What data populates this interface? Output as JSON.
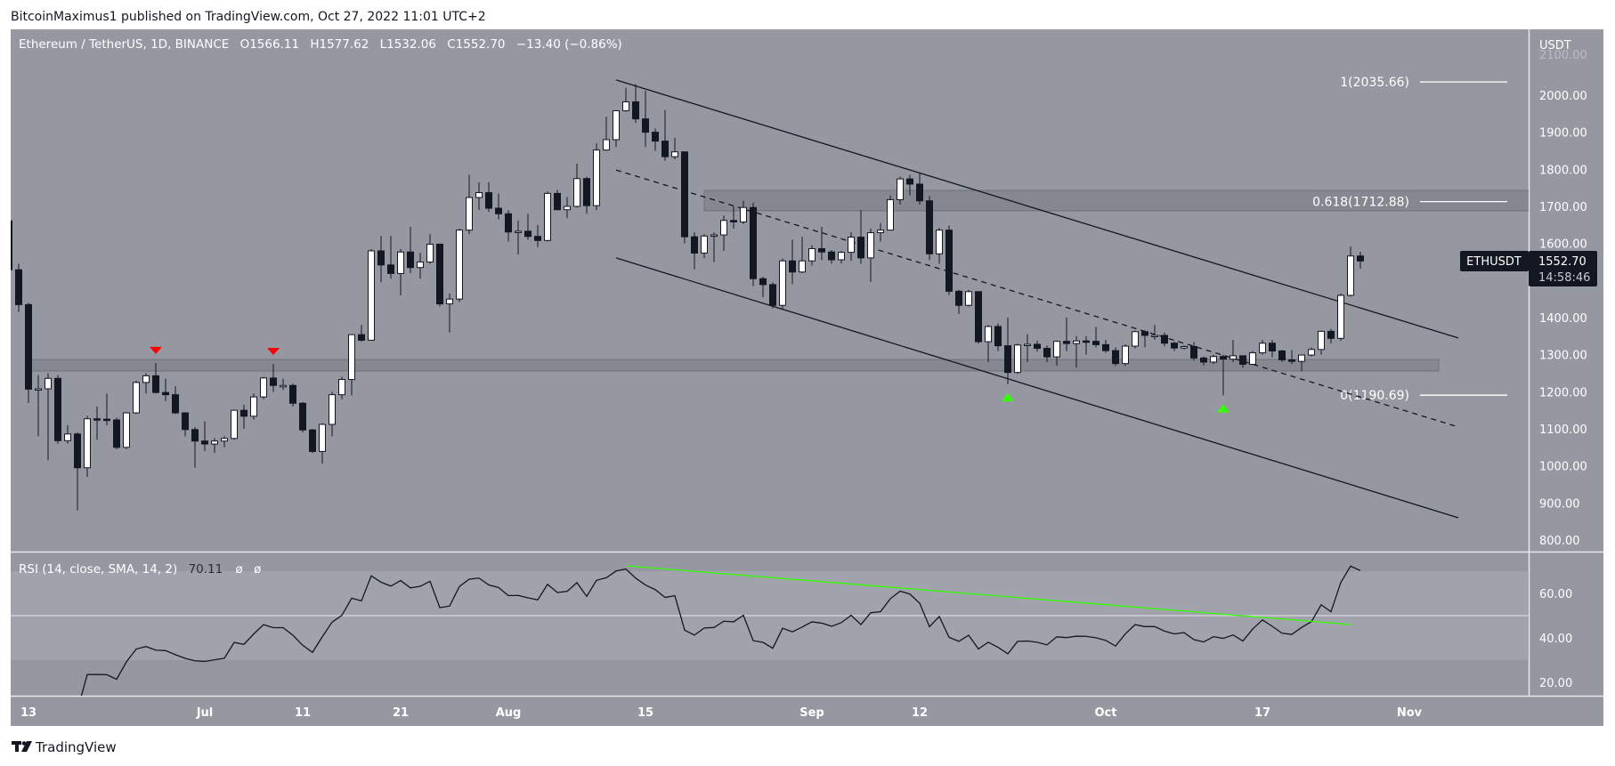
{
  "header": {
    "published": "BitcoinMaximus1 published on TradingView.com, Oct 27, 2022 11:01 UTC+2"
  },
  "legend": {
    "symbol": "Ethereum / TetherUS, 1D, BINANCE",
    "open": "O1566.11",
    "high": "H1577.62",
    "low": "L1532.06",
    "close": "C1552.70",
    "change": "−13.40 (−0.86%)"
  },
  "rsi_legend": {
    "label": "RSI (14, close, SMA, 14, 2)",
    "value": "70.11",
    "extra1": "ø",
    "extra2": "ø"
  },
  "price_axis": {
    "currency": "USDT",
    "ticks": [
      "2100.00",
      "2000.00",
      "1900.00",
      "1800.00",
      "1700.00",
      "1600.00",
      "1500.00",
      "1400.00",
      "1300.00",
      "1200.00",
      "1100.00",
      "1000.00",
      "900.00",
      "800.00"
    ],
    "last_price_symbol": "ETHUSDT",
    "last_price": "1552.70",
    "countdown": "14:58:46"
  },
  "rsi_axis": {
    "ticks": [
      "60.00",
      "40.00",
      "20.00"
    ]
  },
  "time_axis": {
    "ticks": [
      "13",
      "Jul",
      "11",
      "21",
      "Aug",
      "15",
      "Sep",
      "12",
      "Oct",
      "17",
      "Nov"
    ]
  },
  "footer": {
    "brand": "TradingView"
  },
  "colors": {
    "background": "#9598a1",
    "rsi_band": "#a0a3ab",
    "zone": "#80838b",
    "up_candle": "#ffffff",
    "down_candle": "#131722",
    "rsi_trendline": "#33ff00",
    "bear_marker": "#ff0000",
    "bull_marker": "#33ff00"
  },
  "chart_data": {
    "type": "candlestick",
    "symbol": "ETHUSDT",
    "interval": "1D",
    "ylim": [
      780,
      2120
    ],
    "xlim": [
      "2022-06-11",
      "2022-11-08"
    ],
    "candles": [
      [
        "2022-06-11",
        1661,
        1680,
        1510,
        1529
      ],
      [
        "2022-06-12",
        1529,
        1545,
        1415,
        1435
      ],
      [
        "2022-06-13",
        1435,
        1440,
        1170,
        1207
      ],
      [
        "2022-06-14",
        1207,
        1245,
        1080,
        1208
      ],
      [
        "2022-06-15",
        1208,
        1250,
        1015,
        1236
      ],
      [
        "2022-06-16",
        1236,
        1245,
        1060,
        1068
      ],
      [
        "2022-06-17",
        1068,
        1110,
        1060,
        1086
      ],
      [
        "2022-06-18",
        1086,
        1090,
        880,
        995
      ],
      [
        "2022-06-19",
        995,
        1135,
        970,
        1127
      ],
      [
        "2022-06-20",
        1127,
        1160,
        1070,
        1126
      ],
      [
        "2022-06-21",
        1126,
        1195,
        1110,
        1124
      ],
      [
        "2022-06-22",
        1124,
        1130,
        1045,
        1050
      ],
      [
        "2022-06-23",
        1050,
        1145,
        1045,
        1143
      ],
      [
        "2022-06-24",
        1143,
        1230,
        1140,
        1225
      ],
      [
        "2022-06-25",
        1225,
        1250,
        1195,
        1243
      ],
      [
        "2022-06-26",
        1243,
        1278,
        1195,
        1198
      ],
      [
        "2022-06-27",
        1198,
        1235,
        1175,
        1192
      ],
      [
        "2022-06-28",
        1192,
        1215,
        1140,
        1143
      ],
      [
        "2022-06-29",
        1143,
        1145,
        1080,
        1098
      ],
      [
        "2022-06-30",
        1098,
        1105,
        995,
        1067
      ],
      [
        "2022-07-01",
        1067,
        1120,
        1040,
        1059
      ],
      [
        "2022-07-02",
        1059,
        1075,
        1035,
        1067
      ],
      [
        "2022-07-03",
        1067,
        1080,
        1050,
        1074
      ],
      [
        "2022-07-04",
        1074,
        1152,
        1070,
        1150
      ],
      [
        "2022-07-05",
        1150,
        1165,
        1100,
        1134
      ],
      [
        "2022-07-06",
        1134,
        1195,
        1125,
        1186
      ],
      [
        "2022-07-07",
        1186,
        1240,
        1180,
        1237
      ],
      [
        "2022-07-08",
        1237,
        1275,
        1200,
        1217
      ],
      [
        "2022-07-09",
        1217,
        1235,
        1205,
        1217
      ],
      [
        "2022-07-10",
        1217,
        1222,
        1160,
        1169
      ],
      [
        "2022-07-11",
        1169,
        1172,
        1090,
        1097
      ],
      [
        "2022-07-12",
        1097,
        1100,
        1035,
        1039
      ],
      [
        "2022-07-13",
        1039,
        1115,
        1006,
        1112
      ],
      [
        "2022-07-14",
        1112,
        1200,
        1080,
        1192
      ],
      [
        "2022-07-15",
        1192,
        1240,
        1180,
        1233
      ],
      [
        "2022-07-16",
        1233,
        1355,
        1190,
        1354
      ],
      [
        "2022-07-17",
        1354,
        1380,
        1335,
        1339
      ],
      [
        "2022-07-18",
        1339,
        1585,
        1340,
        1580
      ],
      [
        "2022-07-19",
        1580,
        1620,
        1495,
        1542
      ],
      [
        "2022-07-20",
        1542,
        1620,
        1505,
        1519
      ],
      [
        "2022-07-21",
        1519,
        1585,
        1460,
        1577
      ],
      [
        "2022-07-22",
        1577,
        1645,
        1520,
        1535
      ],
      [
        "2022-07-23",
        1535,
        1575,
        1505,
        1550
      ],
      [
        "2022-07-24",
        1550,
        1625,
        1545,
        1598
      ],
      [
        "2022-07-25",
        1598,
        1600,
        1430,
        1437
      ],
      [
        "2022-07-26",
        1437,
        1465,
        1360,
        1450
      ],
      [
        "2022-07-27",
        1450,
        1640,
        1442,
        1636
      ],
      [
        "2022-07-28",
        1636,
        1785,
        1625,
        1724
      ],
      [
        "2022-07-29",
        1724,
        1765,
        1690,
        1737
      ],
      [
        "2022-07-30",
        1737,
        1765,
        1685,
        1695
      ],
      [
        "2022-07-31",
        1695,
        1735,
        1665,
        1680
      ],
      [
        "2022-08-01",
        1680,
        1690,
        1605,
        1631
      ],
      [
        "2022-08-02",
        1631,
        1662,
        1570,
        1633
      ],
      [
        "2022-08-03",
        1633,
        1680,
        1610,
        1619
      ],
      [
        "2022-08-04",
        1619,
        1650,
        1590,
        1608
      ],
      [
        "2022-08-05",
        1608,
        1740,
        1605,
        1735
      ],
      [
        "2022-08-06",
        1735,
        1745,
        1690,
        1691
      ],
      [
        "2022-08-07",
        1691,
        1725,
        1668,
        1700
      ],
      [
        "2022-08-08",
        1700,
        1815,
        1697,
        1775
      ],
      [
        "2022-08-09",
        1775,
        1780,
        1680,
        1702
      ],
      [
        "2022-08-10",
        1702,
        1870,
        1690,
        1852
      ],
      [
        "2022-08-11",
        1852,
        1942,
        1850,
        1880
      ],
      [
        "2022-08-12",
        1880,
        1960,
        1860,
        1958
      ],
      [
        "2022-08-13",
        1958,
        2020,
        1955,
        1982
      ],
      [
        "2022-08-14",
        1982,
        2030,
        1925,
        1936
      ],
      [
        "2022-08-15",
        1936,
        2012,
        1860,
        1900
      ],
      [
        "2022-08-16",
        1900,
        1910,
        1850,
        1876
      ],
      [
        "2022-08-17",
        1876,
        1960,
        1823,
        1834
      ],
      [
        "2022-08-18",
        1834,
        1885,
        1827,
        1847
      ],
      [
        "2022-08-19",
        1847,
        1848,
        1600,
        1618
      ],
      [
        "2022-08-20",
        1618,
        1630,
        1530,
        1574
      ],
      [
        "2022-08-21",
        1574,
        1625,
        1560,
        1620
      ],
      [
        "2022-08-22",
        1620,
        1630,
        1550,
        1623
      ],
      [
        "2022-08-23",
        1623,
        1675,
        1580,
        1662
      ],
      [
        "2022-08-24",
        1662,
        1700,
        1640,
        1658
      ],
      [
        "2022-08-25",
        1658,
        1715,
        1652,
        1697
      ],
      [
        "2022-08-26",
        1697,
        1710,
        1485,
        1505
      ],
      [
        "2022-08-27",
        1505,
        1510,
        1455,
        1489
      ],
      [
        "2022-08-28",
        1489,
        1495,
        1425,
        1433
      ],
      [
        "2022-08-29",
        1433,
        1560,
        1422,
        1553
      ],
      [
        "2022-08-30",
        1553,
        1610,
        1490,
        1523
      ],
      [
        "2022-08-31",
        1523,
        1618,
        1520,
        1553
      ],
      [
        "2022-09-01",
        1553,
        1595,
        1540,
        1586
      ],
      [
        "2022-09-02",
        1586,
        1645,
        1555,
        1577
      ],
      [
        "2022-09-03",
        1577,
        1582,
        1545,
        1556
      ],
      [
        "2022-09-04",
        1556,
        1580,
        1546,
        1576
      ],
      [
        "2022-09-05",
        1576,
        1630,
        1553,
        1617
      ],
      [
        "2022-09-06",
        1617,
        1690,
        1545,
        1561
      ],
      [
        "2022-09-07",
        1561,
        1640,
        1496,
        1629
      ],
      [
        "2022-09-08",
        1629,
        1655,
        1605,
        1636
      ],
      [
        "2022-09-09",
        1636,
        1730,
        1635,
        1718
      ],
      [
        "2022-09-10",
        1718,
        1780,
        1705,
        1774
      ],
      [
        "2022-09-11",
        1774,
        1785,
        1730,
        1760
      ],
      [
        "2022-09-12",
        1760,
        1790,
        1705,
        1715
      ],
      [
        "2022-09-13",
        1715,
        1728,
        1555,
        1572
      ],
      [
        "2022-09-14",
        1572,
        1642,
        1545,
        1636
      ],
      [
        "2022-09-15",
        1636,
        1648,
        1461,
        1471
      ],
      [
        "2022-09-16",
        1471,
        1475,
        1410,
        1433
      ],
      [
        "2022-09-17",
        1433,
        1475,
        1430,
        1470
      ],
      [
        "2022-09-18",
        1470,
        1470,
        1330,
        1335
      ],
      [
        "2022-09-19",
        1335,
        1380,
        1280,
        1376
      ],
      [
        "2022-09-20",
        1376,
        1384,
        1310,
        1324
      ],
      [
        "2022-09-21",
        1324,
        1400,
        1220,
        1252
      ],
      [
        "2022-09-22",
        1252,
        1330,
        1248,
        1326
      ],
      [
        "2022-09-23",
        1326,
        1355,
        1280,
        1328
      ],
      [
        "2022-09-24",
        1328,
        1338,
        1308,
        1317
      ],
      [
        "2022-09-25",
        1317,
        1325,
        1280,
        1294
      ],
      [
        "2022-09-26",
        1294,
        1338,
        1270,
        1336
      ],
      [
        "2022-09-27",
        1336,
        1400,
        1310,
        1330
      ],
      [
        "2022-09-28",
        1330,
        1350,
        1265,
        1337
      ],
      [
        "2022-09-29",
        1337,
        1350,
        1300,
        1336
      ],
      [
        "2022-09-30",
        1336,
        1375,
        1320,
        1327
      ],
      [
        "2022-10-01",
        1327,
        1340,
        1305,
        1311
      ],
      [
        "2022-10-02",
        1311,
        1320,
        1270,
        1276
      ],
      [
        "2022-10-03",
        1276,
        1328,
        1270,
        1323
      ],
      [
        "2022-10-04",
        1323,
        1365,
        1317,
        1362
      ],
      [
        "2022-10-05",
        1362,
        1365,
        1320,
        1352
      ],
      [
        "2022-10-06",
        1352,
        1380,
        1340,
        1352
      ],
      [
        "2022-10-07",
        1352,
        1360,
        1322,
        1331
      ],
      [
        "2022-10-08",
        1331,
        1335,
        1310,
        1318
      ],
      [
        "2022-10-09",
        1318,
        1325,
        1314,
        1322
      ],
      [
        "2022-10-10",
        1322,
        1334,
        1284,
        1291
      ],
      [
        "2022-10-11",
        1291,
        1295,
        1270,
        1280
      ],
      [
        "2022-10-12",
        1280,
        1300,
        1275,
        1295
      ],
      [
        "2022-10-13",
        1295,
        1300,
        1190,
        1288
      ],
      [
        "2022-10-14",
        1288,
        1340,
        1280,
        1297
      ],
      [
        "2022-10-15",
        1297,
        1298,
        1265,
        1274
      ],
      [
        "2022-10-16",
        1274,
        1310,
        1274,
        1305
      ],
      [
        "2022-10-17",
        1305,
        1340,
        1300,
        1331
      ],
      [
        "2022-10-18",
        1331,
        1340,
        1293,
        1310
      ],
      [
        "2022-10-19",
        1310,
        1313,
        1281,
        1286
      ],
      [
        "2022-10-20",
        1286,
        1312,
        1275,
        1282
      ],
      [
        "2022-10-21",
        1282,
        1300,
        1255,
        1299
      ],
      [
        "2022-10-22",
        1299,
        1320,
        1295,
        1314
      ],
      [
        "2022-10-23",
        1314,
        1365,
        1300,
        1363
      ],
      [
        "2022-10-24",
        1363,
        1370,
        1330,
        1344
      ],
      [
        "2022-10-25",
        1344,
        1465,
        1337,
        1460
      ],
      [
        "2022-10-26",
        1460,
        1592,
        1457,
        1566.11
      ],
      [
        "2022-10-27",
        1566.11,
        1577.62,
        1532.06,
        1552.7
      ]
    ],
    "fib_levels": [
      {
        "label": "1(2035.66)",
        "price": 2035.66
      },
      {
        "label": "0.618(1712.88)",
        "price": 1712.88
      },
      {
        "label": "0(1190.69)",
        "price": 1190.69
      }
    ],
    "zones": [
      {
        "from": "2022-06-13",
        "to": "2022-11-04",
        "top": 1287,
        "bottom": 1256
      },
      {
        "from": "2022-08-21",
        "to": "2022-11-20",
        "top": 1743,
        "bottom": 1688
      }
    ],
    "channel": {
      "upper": [
        [
          "2022-08-12",
          2041
        ],
        [
          "2022-11-06",
          1345
        ]
      ],
      "middle": [
        [
          "2022-08-12",
          1798
        ],
        [
          "2022-11-06",
          1105
        ]
      ],
      "lower": [
        [
          "2022-08-12",
          1561
        ],
        [
          "2022-11-06",
          860
        ]
      ]
    },
    "markers": [
      {
        "date": "2022-06-26",
        "type": "bearish"
      },
      {
        "date": "2022-07-08",
        "type": "bearish"
      },
      {
        "date": "2022-09-21",
        "type": "bullish"
      },
      {
        "date": "2022-10-13",
        "type": "bullish"
      }
    ],
    "rsi": {
      "period": 14,
      "last": 70.11,
      "ylim": [
        10,
        80
      ],
      "band": [
        30,
        70
      ],
      "midline": 50,
      "trendline": [
        [
          "2022-08-13",
          72.4
        ],
        [
          "2022-10-26",
          46
        ]
      ]
    }
  }
}
